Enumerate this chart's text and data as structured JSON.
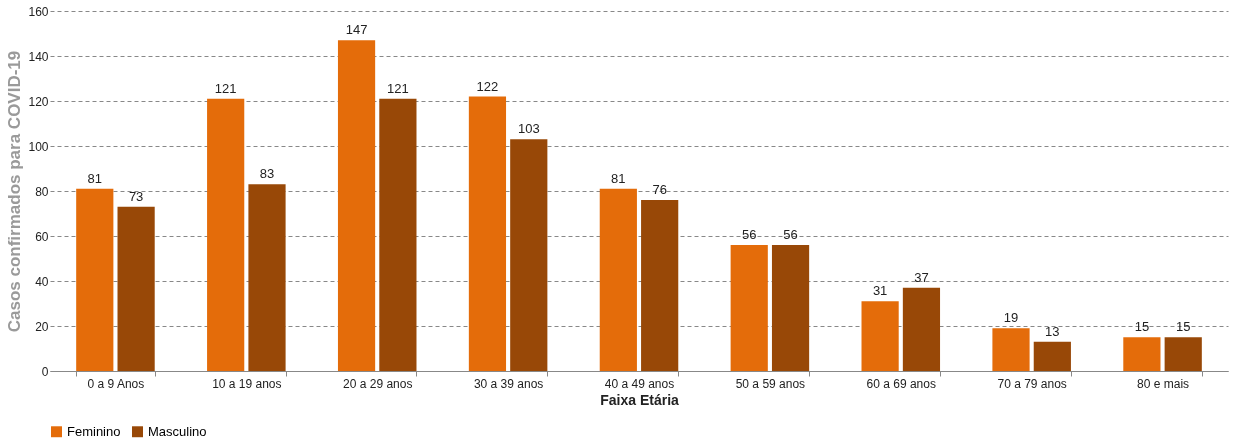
{
  "chart_data": {
    "type": "bar",
    "xlabel": "Faixa Etária",
    "ylabel": "Casos confirmados para COVID-19",
    "categories": [
      "0 a 9 Anos",
      "10 a 19 anos",
      "20 a 29 anos",
      "30 a 39 anos",
      "40 a 49 anos",
      "50 a 59 anos",
      "60 a 69 anos",
      "70 a 79 anos",
      "80 e mais"
    ],
    "series": [
      {
        "name": "Feminino",
        "color": "#e46c0a",
        "values": [
          81,
          121,
          147,
          122,
          81,
          56,
          31,
          19,
          15
        ]
      },
      {
        "name": "Masculino",
        "color": "#984807",
        "values": [
          73,
          83,
          121,
          103,
          76,
          56,
          37,
          13,
          15
        ]
      }
    ],
    "ylim": [
      0,
      160
    ],
    "yticks": [
      0,
      20,
      40,
      60,
      80,
      100,
      120,
      140,
      160
    ],
    "grid": "y",
    "legend": "bottom",
    "data_labels": true
  }
}
